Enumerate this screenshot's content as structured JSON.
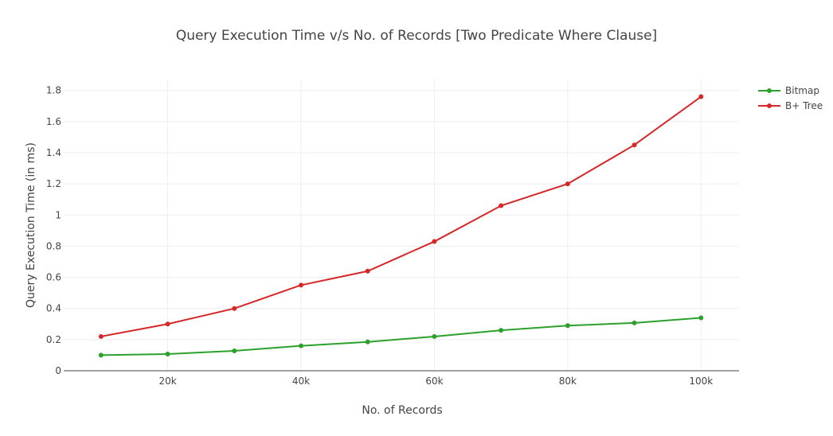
{
  "chart_data": {
    "type": "line",
    "title": "Query Execution Time v/s No. of Records [Two Predicate Where Clause]",
    "xlabel": "No. of Records",
    "ylabel": "Query Execution Time (in ms)",
    "x": [
      10000,
      20000,
      30000,
      40000,
      50000,
      60000,
      70000,
      80000,
      90000,
      100000
    ],
    "xlim": [
      4400,
      105700
    ],
    "ylim": [
      0,
      1.87
    ],
    "xticks": [
      20000,
      40000,
      60000,
      80000,
      100000
    ],
    "xtick_labels": [
      "20k",
      "40k",
      "60k",
      "80k",
      "100k"
    ],
    "yticks": [
      0,
      0.2,
      0.4,
      0.6,
      0.8,
      1,
      1.2,
      1.4,
      1.6,
      1.8
    ],
    "ytick_labels": [
      "0",
      "0.2",
      "0.4",
      "0.6",
      "0.8",
      "1",
      "1.2",
      "1.4",
      "1.6",
      "1.8"
    ],
    "grid": true,
    "legend_position": "top-right",
    "series": [
      {
        "name": "Bitmap",
        "color": "#2ca02c",
        "values": [
          0.1,
          0.107,
          0.128,
          0.16,
          0.185,
          0.22,
          0.26,
          0.29,
          0.307,
          0.34
        ]
      },
      {
        "name": "B+ Tree",
        "color": "#d62728",
        "values": [
          0.22,
          0.3,
          0.4,
          0.55,
          0.64,
          0.83,
          1.06,
          1.2,
          1.45,
          1.76
        ]
      }
    ]
  }
}
